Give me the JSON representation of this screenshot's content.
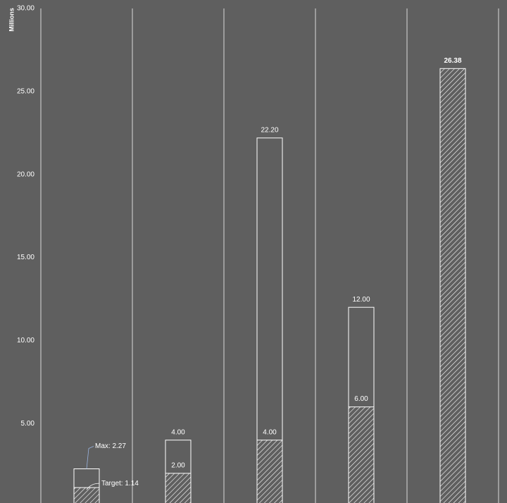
{
  "chart_data": {
    "type": "bar",
    "y_label": "Millions",
    "categories": [
      null,
      null,
      null,
      null,
      null
    ],
    "series": [
      {
        "values": [
          2.27,
          4.0,
          22.2,
          12.0,
          null
        ],
        "value_labels": [
          "Max: 2.27",
          "4.00",
          "22.20",
          "12.00",
          null
        ],
        "style": "outline",
        "color": "#ffffff"
      },
      {
        "values": [
          1.14,
          2.0,
          4.0,
          6.0,
          26.38
        ],
        "value_labels": [
          "Target: 1.14",
          "2.00",
          "4.00",
          "6.00",
          "26.38"
        ],
        "style": "hatched",
        "color": "#ffffff"
      }
    ],
    "ylim": [
      0,
      30
    ],
    "yticks": [
      {
        "value": 5,
        "label": "5.00"
      },
      {
        "value": 10,
        "label": "10.00"
      },
      {
        "value": 15,
        "label": "15.00"
      },
      {
        "value": 20,
        "label": "20.00"
      },
      {
        "value": 25,
        "label": "25.00"
      },
      {
        "value": 30,
        "label": "30.00"
      }
    ],
    "grid": true
  }
}
